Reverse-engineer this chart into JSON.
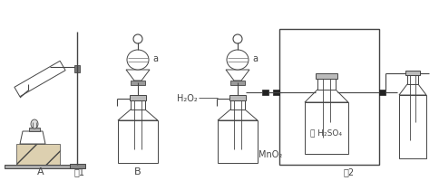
{
  "bg_color": "#ffffff",
  "line_color": "#444444",
  "label_A": "A",
  "label_B": "B",
  "label_fig1": "图1",
  "label_fig2": "图2",
  "label_a1": "a",
  "label_a2": "a",
  "label_H2O2": "H₂O₂",
  "label_MnO2": "MnO₂",
  "label_H2SO4": "浓 H₂SO₄",
  "figsize": [
    4.85,
    2.01
  ],
  "dpi": 100
}
